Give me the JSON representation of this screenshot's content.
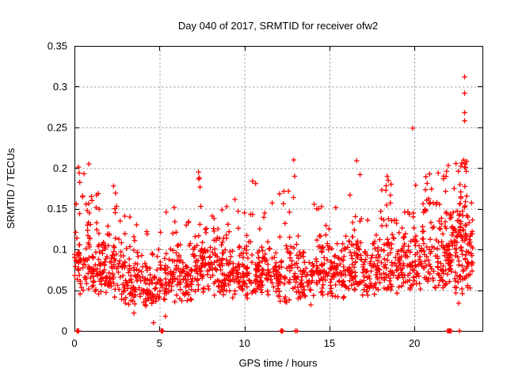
{
  "chart_data": {
    "type": "scatter",
    "title": "Day 040 of 2017, SRMTID for receiver ofw2",
    "xlabel": "GPS time / hours",
    "ylabel": "SRMTID / TECUs",
    "xlim": [
      0,
      24
    ],
    "ylim": [
      0,
      0.35
    ],
    "xticks": {
      "values": [
        0,
        5,
        10,
        15,
        20
      ],
      "labels": [
        "0",
        "5",
        "10",
        "15",
        "20"
      ]
    },
    "yticks": {
      "values": [
        0,
        0.05,
        0.1,
        0.15,
        0.2,
        0.25,
        0.3,
        0.35
      ],
      "labels": [
        "0",
        "0.05",
        "0.1",
        "0.15",
        "0.2",
        "0.25",
        "0.3",
        "0.35"
      ]
    },
    "grid": {
      "show": true,
      "color": "#a0a0a0",
      "dash": "2.5,2.5"
    },
    "frame_color": "#000000",
    "marker": {
      "shape": "plus",
      "size": 7,
      "color": "#ff0000"
    },
    "legend": {
      "show": false
    },
    "notable_points": [
      [
        0.28,
        0.194
      ],
      [
        0.56,
        0.193
      ],
      [
        0.85,
        0.205
      ],
      [
        2.3,
        0.178
      ],
      [
        3.5,
        0.022
      ],
      [
        4.65,
        0.01
      ],
      [
        5.35,
        0.018
      ],
      [
        7.3,
        0.195
      ],
      [
        7.35,
        0.188
      ],
      [
        12.9,
        0.21
      ],
      [
        12.95,
        0.19
      ],
      [
        16.6,
        0.209
      ],
      [
        18.4,
        0.19
      ],
      [
        19.9,
        0.249
      ],
      [
        21.4,
        0.194
      ],
      [
        22.6,
        0.034
      ],
      [
        22.9,
        0.21
      ],
      [
        22.95,
        0.312
      ],
      [
        22.95,
        0.292
      ],
      [
        22.95,
        0.268
      ],
      [
        22.95,
        0.258
      ],
      [
        23.0,
        0.205
      ],
      [
        23.05,
        0.196
      ]
    ],
    "zero_points": [
      0.15,
      0.2,
      0.25,
      5.1,
      5.15,
      5.2,
      12.15,
      12.2,
      12.25,
      13.0,
      13.1,
      21.95,
      22.0,
      22.05,
      22.1,
      22.15,
      22.65
    ],
    "scatter_spec": {
      "seed": 20170407,
      "skew": 1.35,
      "tail_decay": 1.7,
      "segments": [
        [
          0,
          1,
          72,
          0.04,
          0.155,
          0.205,
          0.12
        ],
        [
          1,
          2,
          78,
          0.038,
          0.145,
          0.185,
          0.09
        ],
        [
          2,
          3,
          72,
          0.035,
          0.135,
          0.175,
          0.08
        ],
        [
          3,
          4,
          66,
          0.03,
          0.115,
          0.15,
          0.07
        ],
        [
          4,
          5,
          62,
          0.026,
          0.1,
          0.135,
          0.06
        ],
        [
          5,
          6,
          66,
          0.03,
          0.11,
          0.175,
          0.07
        ],
        [
          6,
          7,
          72,
          0.035,
          0.12,
          0.165,
          0.08
        ],
        [
          7,
          8,
          74,
          0.04,
          0.13,
          0.19,
          0.08
        ],
        [
          8,
          9,
          72,
          0.04,
          0.125,
          0.175,
          0.08
        ],
        [
          9,
          10,
          68,
          0.04,
          0.12,
          0.165,
          0.07
        ],
        [
          10,
          11,
          72,
          0.04,
          0.125,
          0.185,
          0.08
        ],
        [
          11,
          12,
          66,
          0.04,
          0.12,
          0.16,
          0.07
        ],
        [
          12,
          13,
          58,
          0.035,
          0.115,
          0.185,
          0.08
        ],
        [
          13,
          14,
          62,
          0.032,
          0.115,
          0.15,
          0.07
        ],
        [
          14,
          15,
          68,
          0.04,
          0.125,
          0.165,
          0.08
        ],
        [
          15,
          16,
          68,
          0.04,
          0.125,
          0.155,
          0.07
        ],
        [
          16,
          17,
          68,
          0.042,
          0.13,
          0.2,
          0.08
        ],
        [
          17,
          18,
          68,
          0.042,
          0.13,
          0.165,
          0.08
        ],
        [
          18,
          19,
          72,
          0.045,
          0.135,
          0.185,
          0.09
        ],
        [
          19,
          20,
          72,
          0.045,
          0.14,
          0.2,
          0.09
        ],
        [
          20,
          21,
          72,
          0.05,
          0.145,
          0.195,
          0.1
        ],
        [
          21,
          22,
          78,
          0.05,
          0.155,
          0.205,
          0.1
        ],
        [
          22,
          23,
          88,
          0.045,
          0.17,
          0.21,
          0.12
        ],
        [
          22.6,
          23.15,
          30,
          0.1,
          0.2,
          0.21,
          0.15
        ],
        [
          23,
          23.45,
          40,
          0.05,
          0.15,
          0.195,
          0.1
        ]
      ]
    }
  }
}
